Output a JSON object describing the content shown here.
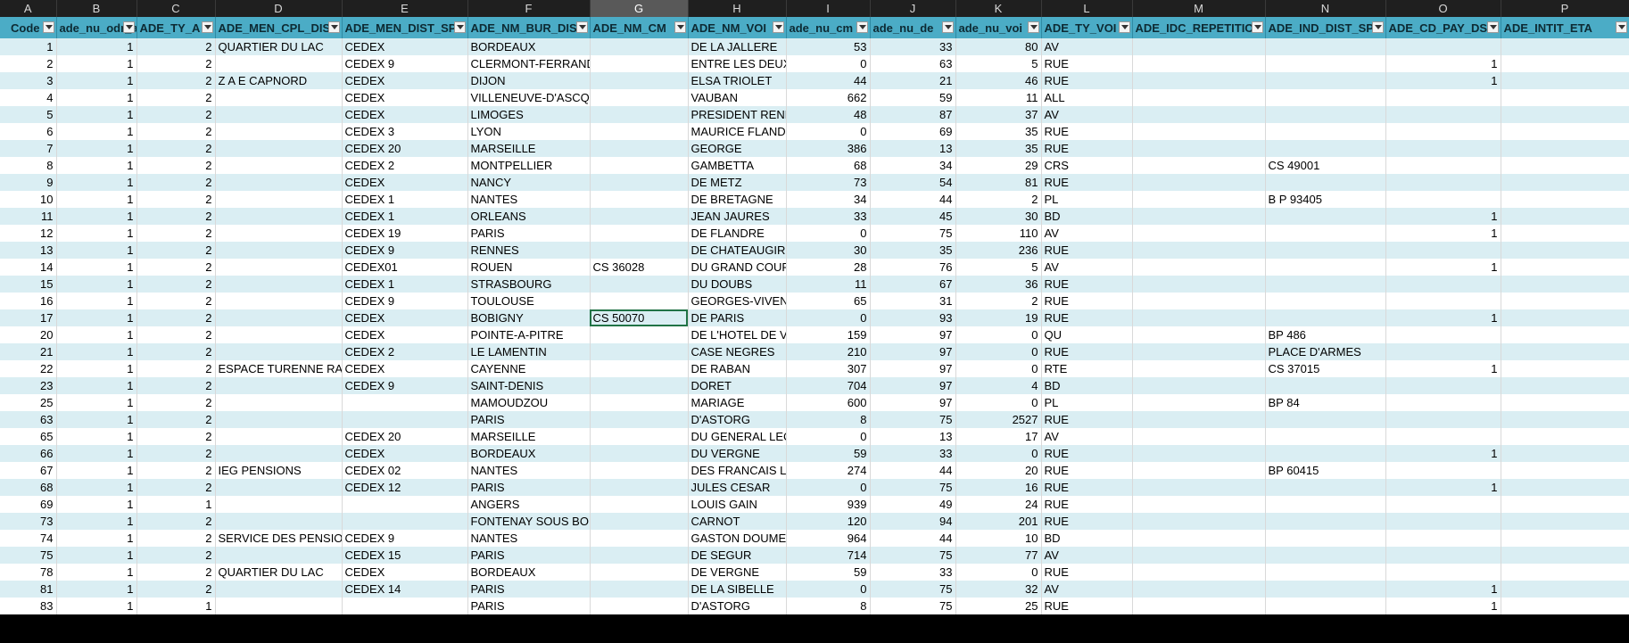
{
  "column_letters": [
    "A",
    "B",
    "C",
    "D",
    "E",
    "F",
    "G",
    "H",
    "I",
    "J",
    "K",
    "L",
    "M",
    "N",
    "O",
    "P"
  ],
  "selected_column": "G",
  "headers": [
    "Code",
    "ade_nu_odr_a",
    "ADE_TY_A",
    "ADE_MEN_CPL_DIS",
    "ADE_MEN_DIST_SP",
    "ADE_NM_BUR_DIS",
    "ADE_NM_CM",
    "ADE_NM_VOI",
    "ade_nu_cm",
    "ade_nu_de",
    "ade_nu_voi",
    "ADE_TY_VOI",
    "ADE_IDC_REPETITIO",
    "ADE_IND_DIST_SP",
    "ADE_CD_PAY_DS",
    "ADE_INTIT_ETA"
  ],
  "rows": [
    [
      "1",
      "1",
      "2",
      "QUARTIER DU LAC",
      "CEDEX",
      "BORDEAUX",
      "",
      "DE LA JALLERE",
      "53",
      "33",
      "80",
      "AV",
      "",
      "",
      "",
      ""
    ],
    [
      "2",
      "1",
      "2",
      "",
      "CEDEX 9",
      "CLERMONT-FERRAND",
      "",
      "ENTRE LES DEUX V",
      "0",
      "63",
      "5",
      "RUE",
      "",
      "",
      "1",
      ""
    ],
    [
      "3",
      "1",
      "2",
      "Z A E CAPNORD",
      "CEDEX",
      "DIJON",
      "",
      "ELSA TRIOLET",
      "44",
      "21",
      "46",
      "RUE",
      "",
      "",
      "1",
      ""
    ],
    [
      "4",
      "1",
      "2",
      "",
      "CEDEX",
      "VILLENEUVE-D'ASCQ",
      "",
      "VAUBAN",
      "662",
      "59",
      "11",
      "ALL",
      "",
      "",
      "",
      ""
    ],
    [
      "5",
      "1",
      "2",
      "",
      "CEDEX",
      "LIMOGES",
      "",
      "PRESIDENT RENE",
      "48",
      "87",
      "37",
      "AV",
      "",
      "",
      "",
      ""
    ],
    [
      "6",
      "1",
      "2",
      "",
      "CEDEX 3",
      "LYON",
      "",
      "MAURICE FLANDI",
      "0",
      "69",
      "35",
      "RUE",
      "",
      "",
      "",
      ""
    ],
    [
      "7",
      "1",
      "2",
      "",
      "CEDEX 20",
      "MARSEILLE",
      "",
      "GEORGE",
      "386",
      "13",
      "35",
      "RUE",
      "",
      "",
      "",
      ""
    ],
    [
      "8",
      "1",
      "2",
      "",
      "CEDEX 2",
      "MONTPELLIER",
      "",
      "GAMBETTA",
      "68",
      "34",
      "29",
      "CRS",
      "",
      "CS 49001",
      "",
      ""
    ],
    [
      "9",
      "1",
      "2",
      "",
      "CEDEX",
      "NANCY",
      "",
      "DE METZ",
      "73",
      "54",
      "81",
      "RUE",
      "",
      "",
      "",
      ""
    ],
    [
      "10",
      "1",
      "2",
      "",
      "CEDEX 1",
      "NANTES",
      "",
      "DE BRETAGNE",
      "34",
      "44",
      "2",
      "PL",
      "",
      "B P 93405",
      "",
      ""
    ],
    [
      "11",
      "1",
      "2",
      "",
      "CEDEX 1",
      "ORLEANS",
      "",
      "JEAN JAURES",
      "33",
      "45",
      "30",
      "BD",
      "",
      "",
      "1",
      ""
    ],
    [
      "12",
      "1",
      "2",
      "",
      "CEDEX 19",
      "PARIS",
      "",
      "DE FLANDRE",
      "0",
      "75",
      "110",
      "AV",
      "",
      "",
      "1",
      ""
    ],
    [
      "13",
      "1",
      "2",
      "",
      "CEDEX 9",
      "RENNES",
      "",
      "DE CHATEAUGIRC",
      "30",
      "35",
      "236",
      "RUE",
      "",
      "",
      "",
      ""
    ],
    [
      "14",
      "1",
      "2",
      "",
      "CEDEX01",
      "ROUEN",
      "CS 36028",
      "DU GRAND COURS",
      "28",
      "76",
      "5",
      "AV",
      "",
      "",
      "1",
      ""
    ],
    [
      "15",
      "1",
      "2",
      "",
      "CEDEX 1",
      "STRASBOURG",
      "",
      "DU DOUBS",
      "11",
      "67",
      "36",
      "RUE",
      "",
      "",
      "",
      ""
    ],
    [
      "16",
      "1",
      "2",
      "",
      "CEDEX 9",
      "TOULOUSE",
      "",
      "GEORGES-VIVENT",
      "65",
      "31",
      "2",
      "RUE",
      "",
      "",
      "",
      ""
    ],
    [
      "17",
      "1",
      "2",
      "",
      "CEDEX",
      "BOBIGNY",
      "CS 50070",
      "DE PARIS",
      "0",
      "93",
      "19",
      "RUE",
      "",
      "",
      "1",
      ""
    ],
    [
      "20",
      "1",
      "2",
      "",
      "CEDEX",
      "POINTE-A-PITRE",
      "",
      "DE L'HOTEL DE VIL",
      "159",
      "97",
      "0",
      "QU",
      "",
      "BP 486",
      "",
      ""
    ],
    [
      "21",
      "1",
      "2",
      "",
      "CEDEX 2",
      "LE LAMENTIN",
      "",
      "CASE NEGRES",
      "210",
      "97",
      "0",
      "RUE",
      "",
      "PLACE D'ARMES",
      "",
      ""
    ],
    [
      "22",
      "1",
      "2",
      "ESPACE TURENNE RADA",
      "CEDEX",
      "CAYENNE",
      "",
      "DE RABAN",
      "307",
      "97",
      "0",
      "RTE",
      "",
      "CS 37015",
      "1",
      ""
    ],
    [
      "23",
      "1",
      "2",
      "",
      "CEDEX 9",
      "SAINT-DENIS",
      "",
      "DORET",
      "704",
      "97",
      "4",
      "BD",
      "",
      "",
      "",
      ""
    ],
    [
      "25",
      "1",
      "2",
      "",
      "",
      "MAMOUDZOU",
      "",
      "MARIAGE",
      "600",
      "97",
      "0",
      "PL",
      "",
      "BP 84",
      "",
      ""
    ],
    [
      "63",
      "1",
      "2",
      "",
      "",
      "PARIS",
      "",
      "D'ASTORG",
      "8",
      "75",
      "2527",
      "RUE",
      "",
      "",
      "",
      ""
    ],
    [
      "65",
      "1",
      "2",
      "",
      "CEDEX 20",
      "MARSEILLE",
      "",
      "DU GENERAL LECL",
      "0",
      "13",
      "17",
      "AV",
      "",
      "",
      "",
      ""
    ],
    [
      "66",
      "1",
      "2",
      "",
      "CEDEX",
      "BORDEAUX",
      "",
      "DU VERGNE",
      "59",
      "33",
      "0",
      "RUE",
      "",
      "",
      "1",
      ""
    ],
    [
      "67",
      "1",
      "2",
      "IEG PENSIONS",
      "CEDEX 02",
      "NANTES",
      "",
      "DES FRANCAIS LIE",
      "274",
      "44",
      "20",
      "RUE",
      "",
      "BP 60415",
      "",
      ""
    ],
    [
      "68",
      "1",
      "2",
      "",
      "CEDEX 12",
      "PARIS",
      "",
      "JULES CESAR",
      "0",
      "75",
      "16",
      "RUE",
      "",
      "",
      "1",
      ""
    ],
    [
      "69",
      "1",
      "1",
      "",
      "",
      "ANGERS",
      "",
      "LOUIS GAIN",
      "939",
      "49",
      "24",
      "RUE",
      "",
      "",
      "",
      ""
    ],
    [
      "73",
      "1",
      "2",
      "",
      "",
      "FONTENAY SOUS BOIS",
      "",
      "CARNOT",
      "120",
      "94",
      "201",
      "RUE",
      "",
      "",
      "",
      ""
    ],
    [
      "74",
      "1",
      "2",
      "SERVICE DES PENSIONS",
      "CEDEX 9",
      "NANTES",
      "",
      "GASTON DOUMEF",
      "964",
      "44",
      "10",
      "BD",
      "",
      "",
      "",
      ""
    ],
    [
      "75",
      "1",
      "2",
      "",
      "CEDEX 15",
      "PARIS",
      "",
      "DE SEGUR",
      "714",
      "75",
      "77",
      "AV",
      "",
      "",
      "",
      ""
    ],
    [
      "78",
      "1",
      "2",
      "QUARTIER DU LAC",
      "CEDEX",
      "BORDEAUX",
      "",
      "DE VERGNE",
      "59",
      "33",
      "0",
      "RUE",
      "",
      "",
      "",
      ""
    ],
    [
      "81",
      "1",
      "2",
      "",
      "CEDEX 14",
      "PARIS",
      "",
      "DE LA SIBELLE",
      "0",
      "75",
      "32",
      "AV",
      "",
      "",
      "1",
      ""
    ],
    [
      "83",
      "1",
      "1",
      "",
      "",
      "PARIS",
      "",
      "D'ASTORG",
      "8",
      "75",
      "25",
      "RUE",
      "",
      "",
      "1",
      ""
    ]
  ]
}
